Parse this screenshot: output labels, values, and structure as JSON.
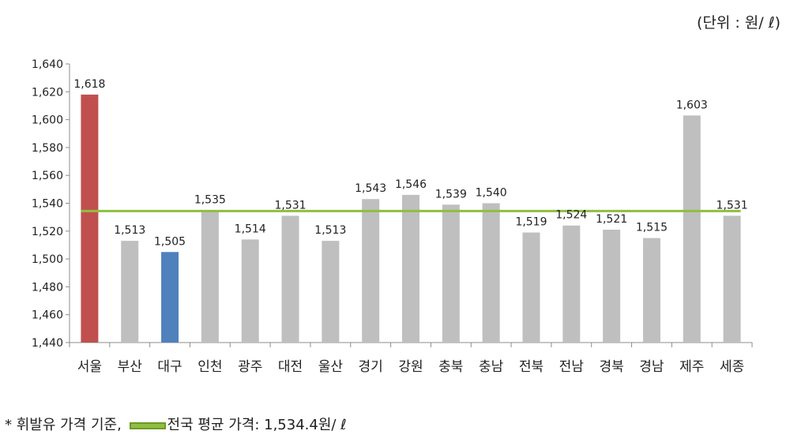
{
  "unit_label": "(단위 : 원/ ℓ)",
  "footnote": {
    "prefix": "* 휘발유 가격 기준,",
    "legend_label": "전국 평균 가격: 1,534.4원/ ℓ"
  },
  "chart_data": {
    "type": "bar",
    "categories": [
      "서울",
      "부산",
      "대구",
      "인천",
      "광주",
      "대전",
      "울산",
      "경기",
      "강원",
      "충북",
      "충남",
      "전북",
      "전남",
      "경북",
      "경남",
      "제주",
      "세종"
    ],
    "values": [
      1618,
      1513,
      1505,
      1535,
      1514,
      1531,
      1513,
      1543,
      1546,
      1539,
      1540,
      1519,
      1524,
      1521,
      1515,
      1603,
      1531
    ],
    "value_labels": [
      "1,618",
      "1,513",
      "1,505",
      "1,535",
      "1,514",
      "1,531",
      "1,513",
      "1,543",
      "1,546",
      "1,539",
      "1,540",
      "1,519",
      "1,524",
      "1,521",
      "1,515",
      "1,603",
      "1,531"
    ],
    "bar_colors": [
      "#c0504d",
      "#bfbfbf",
      "#4f81bd",
      "#bfbfbf",
      "#bfbfbf",
      "#bfbfbf",
      "#bfbfbf",
      "#bfbfbf",
      "#bfbfbf",
      "#bfbfbf",
      "#bfbfbf",
      "#bfbfbf",
      "#bfbfbf",
      "#bfbfbf",
      "#bfbfbf",
      "#bfbfbf",
      "#bfbfbf"
    ],
    "average_line": {
      "value": 1534.4,
      "color": "#8fbf3f"
    },
    "ylim": [
      1440,
      1640
    ],
    "yticks": [
      "1,440",
      "1,460",
      "1,480",
      "1,500",
      "1,520",
      "1,540",
      "1,560",
      "1,580",
      "1,600",
      "1,620",
      "1,640"
    ],
    "ytick_values": [
      1440,
      1460,
      1480,
      1500,
      1520,
      1540,
      1560,
      1580,
      1600,
      1620,
      1640
    ],
    "grid": false,
    "xlabel": "",
    "ylabel": ""
  }
}
